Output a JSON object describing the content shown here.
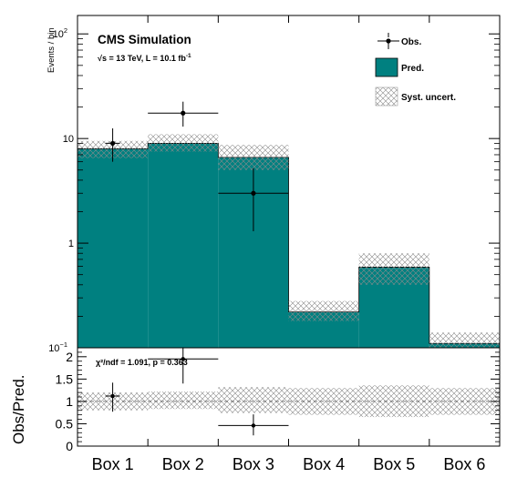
{
  "chart_data": {
    "type": "bar",
    "categories": [
      "Box 1",
      "Box 2",
      "Box 3",
      "Box 4",
      "Box 5",
      "Box 6"
    ],
    "ylabel": "Events / bin",
    "yscale": "log",
    "ylim": [
      0.1,
      150
    ],
    "yticks": [
      {
        "value": 100,
        "label": "10",
        "exp": "2"
      },
      {
        "value": 10,
        "label": "10",
        "exp": ""
      },
      {
        "value": 1,
        "label": "1",
        "exp": ""
      },
      {
        "value": 0.1,
        "label": "10",
        "exp": "−1"
      }
    ],
    "header": {
      "title": "CMS Simulation",
      "subtitle": "√s = 13 TeV, L = 10.1 fb",
      "subtitle_exp": "-1"
    },
    "legend": {
      "placement": "top-right",
      "entries": [
        {
          "kind": "obs",
          "label": "Obs."
        },
        {
          "kind": "pred",
          "label": "Pred."
        },
        {
          "kind": "syst",
          "label": "Syst. uncert."
        }
      ]
    },
    "series": [
      {
        "name": "Pred.",
        "kind": "hist",
        "color": "#008080",
        "values": [
          8.0,
          9.0,
          6.6,
          0.22,
          0.59,
          0.11
        ]
      },
      {
        "name": "Syst. uncert.",
        "kind": "band",
        "low": [
          6.5,
          7.5,
          5.0,
          0.18,
          0.4,
          0.09
        ],
        "high": [
          9.5,
          11.0,
          8.7,
          0.28,
          0.8,
          0.14
        ]
      },
      {
        "name": "Obs.",
        "kind": "points",
        "values": [
          9.0,
          17.5,
          3.0,
          null,
          null,
          null
        ],
        "err_low": [
          3.0,
          4.5,
          1.7,
          null,
          null,
          null
        ],
        "err_high": [
          3.5,
          5.0,
          2.2,
          null,
          null,
          null
        ],
        "xerr_full": [
          false,
          true,
          true,
          false,
          false,
          false
        ]
      }
    ],
    "ratio": {
      "ylabel": "Obs/Pred.",
      "ylim": [
        0,
        2.2
      ],
      "yticks": [
        {
          "value": 0,
          "label": "0"
        },
        {
          "value": 0.5,
          "label": "0.5"
        },
        {
          "value": 1,
          "label": "1"
        },
        {
          "value": 1.5,
          "label": "1.5"
        },
        {
          "value": 2,
          "label": "2"
        }
      ],
      "annotation": "χ²/ndf = 1.091, p = 0.363",
      "values": [
        1.12,
        1.95,
        0.46,
        null,
        null,
        null
      ],
      "err_low": [
        0.35,
        0.55,
        0.22,
        null,
        null,
        null
      ],
      "err_high": [
        0.3,
        0.65,
        0.25,
        null,
        null,
        null
      ],
      "band_low": [
        0.8,
        0.83,
        0.74,
        0.7,
        0.65,
        0.7
      ],
      "band_high": [
        1.2,
        1.22,
        1.32,
        1.3,
        1.36,
        1.3
      ]
    }
  }
}
